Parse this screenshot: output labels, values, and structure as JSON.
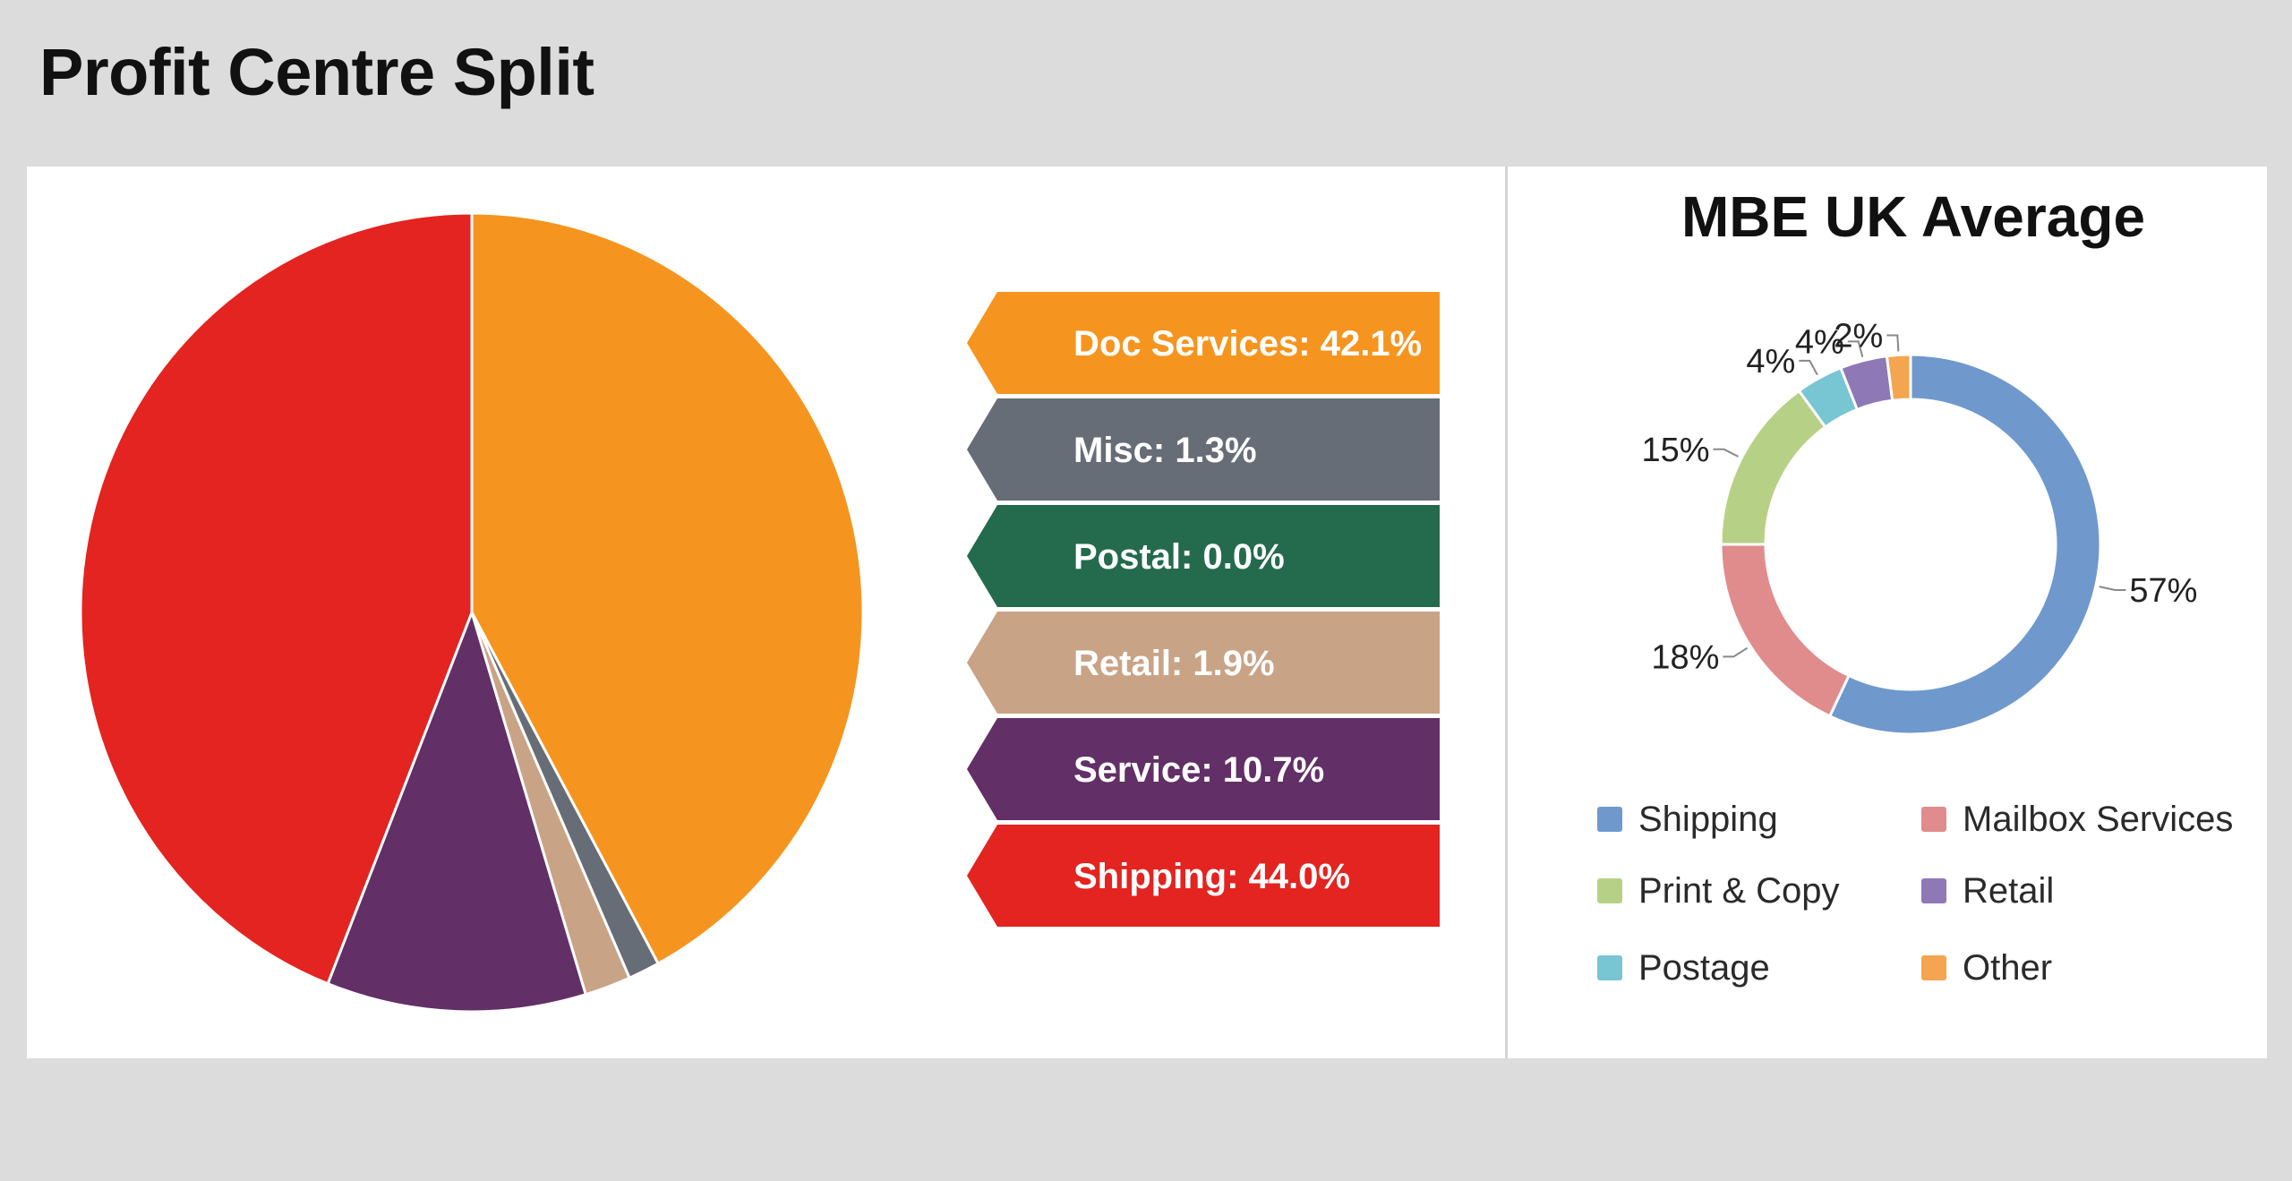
{
  "page": {
    "title": "Profit Centre Split"
  },
  "chart_data": [
    {
      "type": "pie",
      "categories": [
        "Doc Services",
        "Misc",
        "Postal",
        "Retail",
        "Service",
        "Shipping"
      ],
      "values": [
        42.1,
        1.3,
        0.0,
        1.9,
        10.7,
        44.0
      ],
      "labels": [
        "Doc Services: 42.1%",
        "Misc: 1.3%",
        "Postal: 0.0%",
        "Retail: 1.9%",
        "Service: 10.7%",
        "Shipping: 44.0%"
      ],
      "colors": [
        "#f5951f",
        "#676d76",
        "#236b4c",
        "#c9a386",
        "#622f66",
        "#e32420"
      ],
      "label_text_colors": [
        "#ffffff",
        "#ffffff",
        "#ffffff",
        "#ffffff",
        "#ffffff",
        "#ffffff"
      ],
      "start_angle_deg": 0,
      "direction": "clockwise",
      "legend_placement": "right"
    },
    {
      "type": "pie",
      "subtype": "donut",
      "title": "MBE UK Average",
      "categories": [
        "Shipping",
        "Mailbox Services",
        "Print & Copy",
        "Postage",
        "Retail",
        "Other"
      ],
      "values": [
        57,
        18,
        15,
        4,
        4,
        2
      ],
      "labels": [
        "57%",
        "18%",
        "15%",
        "4%",
        "4%",
        "2%"
      ],
      "colors": [
        "#6f98cd",
        "#e08c8c",
        "#b6d185",
        "#78c5d3",
        "#8e78b6",
        "#f3a550"
      ],
      "legend": {
        "placement": "bottom",
        "entries": [
          "Shipping",
          "Mailbox Services",
          "Print & Copy",
          "Retail",
          "Postage",
          "Other"
        ],
        "colors": [
          "#6f98cd",
          "#e08c8c",
          "#b6d185",
          "#8e78b6",
          "#78c5d3",
          "#f3a550"
        ]
      }
    }
  ]
}
